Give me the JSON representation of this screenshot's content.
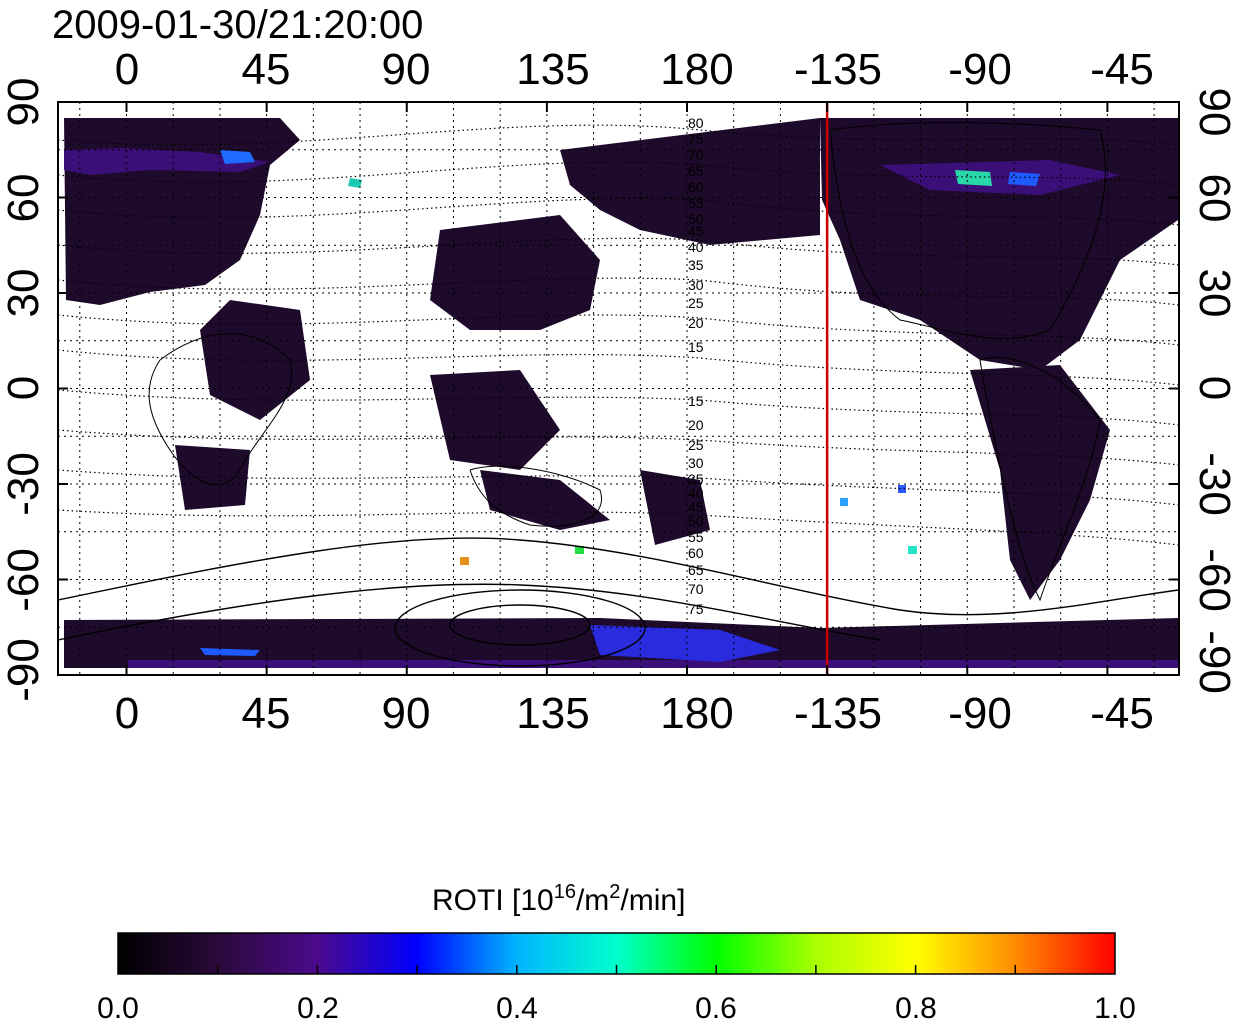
{
  "title": "2009-01-30/21:20:00",
  "map": {
    "lon_ticks": [
      "0",
      "45",
      "90",
      "135",
      "180",
      "-135",
      "-90",
      "-45"
    ],
    "lat_ticks_left": [
      "90",
      "60",
      "30",
      "0",
      "-30",
      "-60",
      "-90"
    ],
    "lat_ticks_right": [
      "90",
      "60",
      "30",
      "0",
      "-30",
      "-60",
      "-90"
    ],
    "lon_values": [
      0,
      45,
      90,
      135,
      180,
      225,
      270,
      315
    ],
    "lat_values": [
      90,
      60,
      30,
      0,
      -30,
      -60,
      -90
    ],
    "lon_range": [
      -22,
      338
    ],
    "lat_range": [
      -90,
      90
    ],
    "terminator_lon": -135,
    "terminator_color": "#cc0000",
    "grid": "dotted",
    "mlat_labels_north": [
      "80",
      "75",
      "70",
      "65",
      "60",
      "55",
      "50",
      "45",
      "40",
      "35",
      "30",
      "25",
      "20",
      "15"
    ],
    "mlat_labels_south": [
      "15",
      "20",
      "25",
      "30",
      "35",
      "40",
      "45",
      "50",
      "55",
      "60",
      "65",
      "70",
      "75"
    ]
  },
  "colorbar": {
    "label_main": "ROTI  [10",
    "label_exp1": "16",
    "label_mid": "/m",
    "label_exp2": "2",
    "label_end": "/min]",
    "ticks": [
      "0.0",
      "0.2",
      "0.4",
      "0.6",
      "0.8",
      "1.0"
    ],
    "range": [
      0.0,
      1.0
    ],
    "colors": [
      "#000000",
      "#2a0a3a",
      "#4b0a8c",
      "#0000ff",
      "#00b4ff",
      "#00ffcc",
      "#00ff00",
      "#aaff00",
      "#ffff00",
      "#ff8c00",
      "#ff0000"
    ]
  }
}
